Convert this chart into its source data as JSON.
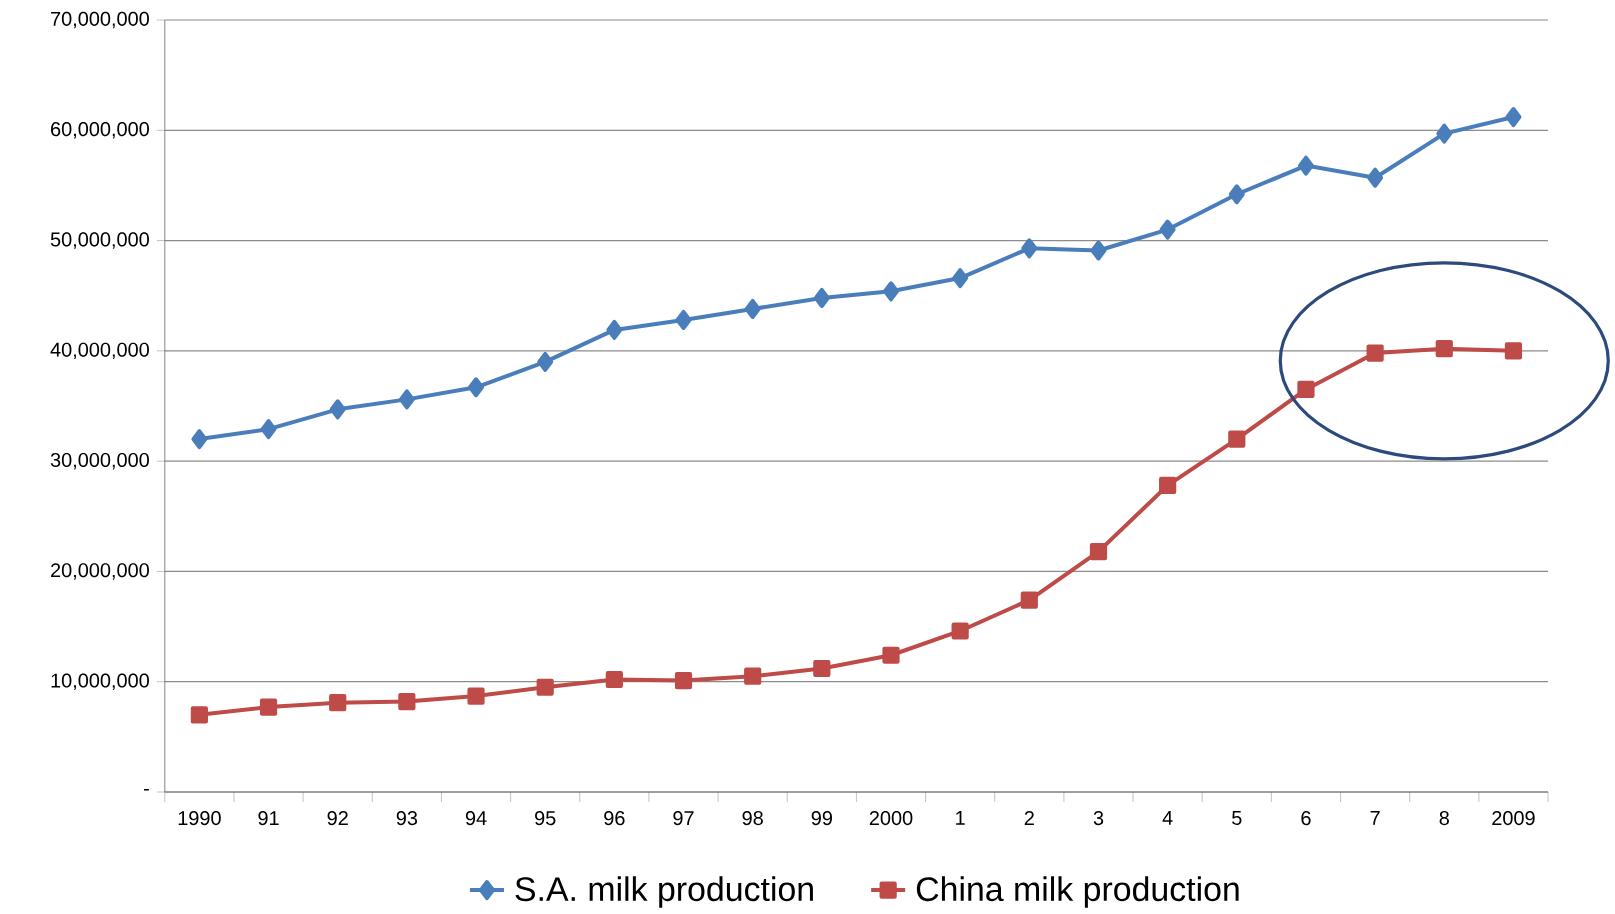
{
  "chart_data": {
    "type": "line",
    "categories": [
      "1990",
      "91",
      "92",
      "93",
      "94",
      "95",
      "96",
      "97",
      "98",
      "99",
      "2000",
      "1",
      "2",
      "3",
      "4",
      "5",
      "6",
      "7",
      "8",
      "2009"
    ],
    "series": [
      {
        "name": "S.A. milk production",
        "color": "#4a7ebb",
        "marker": "diamond",
        "values": [
          32000000,
          32900000,
          34700000,
          35600000,
          36700000,
          39000000,
          41900000,
          42800000,
          43800000,
          44800000,
          45400000,
          46600000,
          49300000,
          49100000,
          51000000,
          54200000,
          56800000,
          55700000,
          59700000,
          61200000
        ]
      },
      {
        "name": "China milk production",
        "color": "#be4b48",
        "marker": "square",
        "values": [
          7000000,
          7700000,
          8100000,
          8200000,
          8700000,
          9500000,
          10200000,
          10100000,
          10500000,
          11200000,
          12400000,
          14600000,
          17400000,
          21800000,
          27800000,
          32000000,
          36500000,
          39800000,
          40200000,
          40000000
        ]
      }
    ],
    "ylim": [
      0,
      70000000
    ],
    "yticks": [
      {
        "value": 0,
        "label": "-"
      },
      {
        "value": 10000000,
        "label": "10,000,000"
      },
      {
        "value": 20000000,
        "label": "20,000,000"
      },
      {
        "value": 30000000,
        "label": "30,000,000"
      },
      {
        "value": 40000000,
        "label": "40,000,000"
      },
      {
        "value": 50000000,
        "label": "50,000,000"
      },
      {
        "value": 60000000,
        "label": "60,000,000"
      },
      {
        "value": 70000000,
        "label": "70,000,000"
      }
    ],
    "grid": "y",
    "legend": "bottom"
  }
}
